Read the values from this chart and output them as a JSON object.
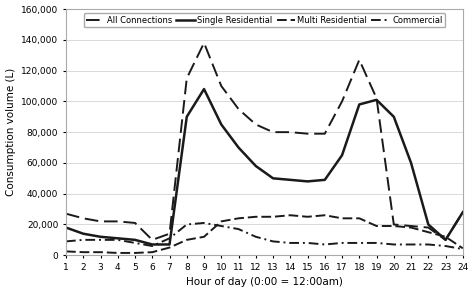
{
  "hours": [
    1,
    2,
    3,
    4,
    5,
    6,
    7,
    8,
    9,
    10,
    11,
    12,
    13,
    14,
    15,
    16,
    17,
    18,
    19,
    20,
    21,
    22,
    23,
    24
  ],
  "all_connections": [
    27000,
    24000,
    22000,
    22000,
    21000,
    10000,
    14000,
    115000,
    138000,
    110000,
    95000,
    85000,
    80000,
    80000,
    79000,
    79000,
    100000,
    127000,
    102000,
    20000,
    19000,
    18000,
    10000,
    28000
  ],
  "single_residential": [
    18000,
    14000,
    12000,
    11000,
    10000,
    7000,
    7000,
    90000,
    108000,
    85000,
    70000,
    58000,
    50000,
    49000,
    48000,
    49000,
    65000,
    98000,
    101000,
    90000,
    60000,
    20000,
    10000,
    28000
  ],
  "multi_residential": [
    2500,
    2000,
    2000,
    1500,
    1500,
    2000,
    5000,
    10000,
    12000,
    22000,
    24000,
    25000,
    25000,
    26000,
    25000,
    26000,
    24000,
    24000,
    19000,
    19000,
    18000,
    15000,
    12000,
    4500
  ],
  "commercial": [
    9000,
    10000,
    10000,
    10000,
    8000,
    6000,
    11000,
    20000,
    21000,
    19000,
    17000,
    12000,
    9000,
    8000,
    8000,
    7000,
    8000,
    8000,
    8000,
    7000,
    7000,
    7000,
    6000,
    4000
  ],
  "ylim": [
    0,
    160000
  ],
  "yticks": [
    0,
    20000,
    40000,
    60000,
    80000,
    100000,
    120000,
    140000,
    160000
  ],
  "ylabel": "Consumption volume (L)",
  "xlabel": "Hour of day (0:00 = 12:00am)",
  "legend_labels": [
    "All Connections",
    "Single Residential",
    "Multi Residential",
    "Commercial"
  ],
  "bg_color": "#ffffff",
  "line_color": "#1a1a1a",
  "grid_color": "#cccccc"
}
